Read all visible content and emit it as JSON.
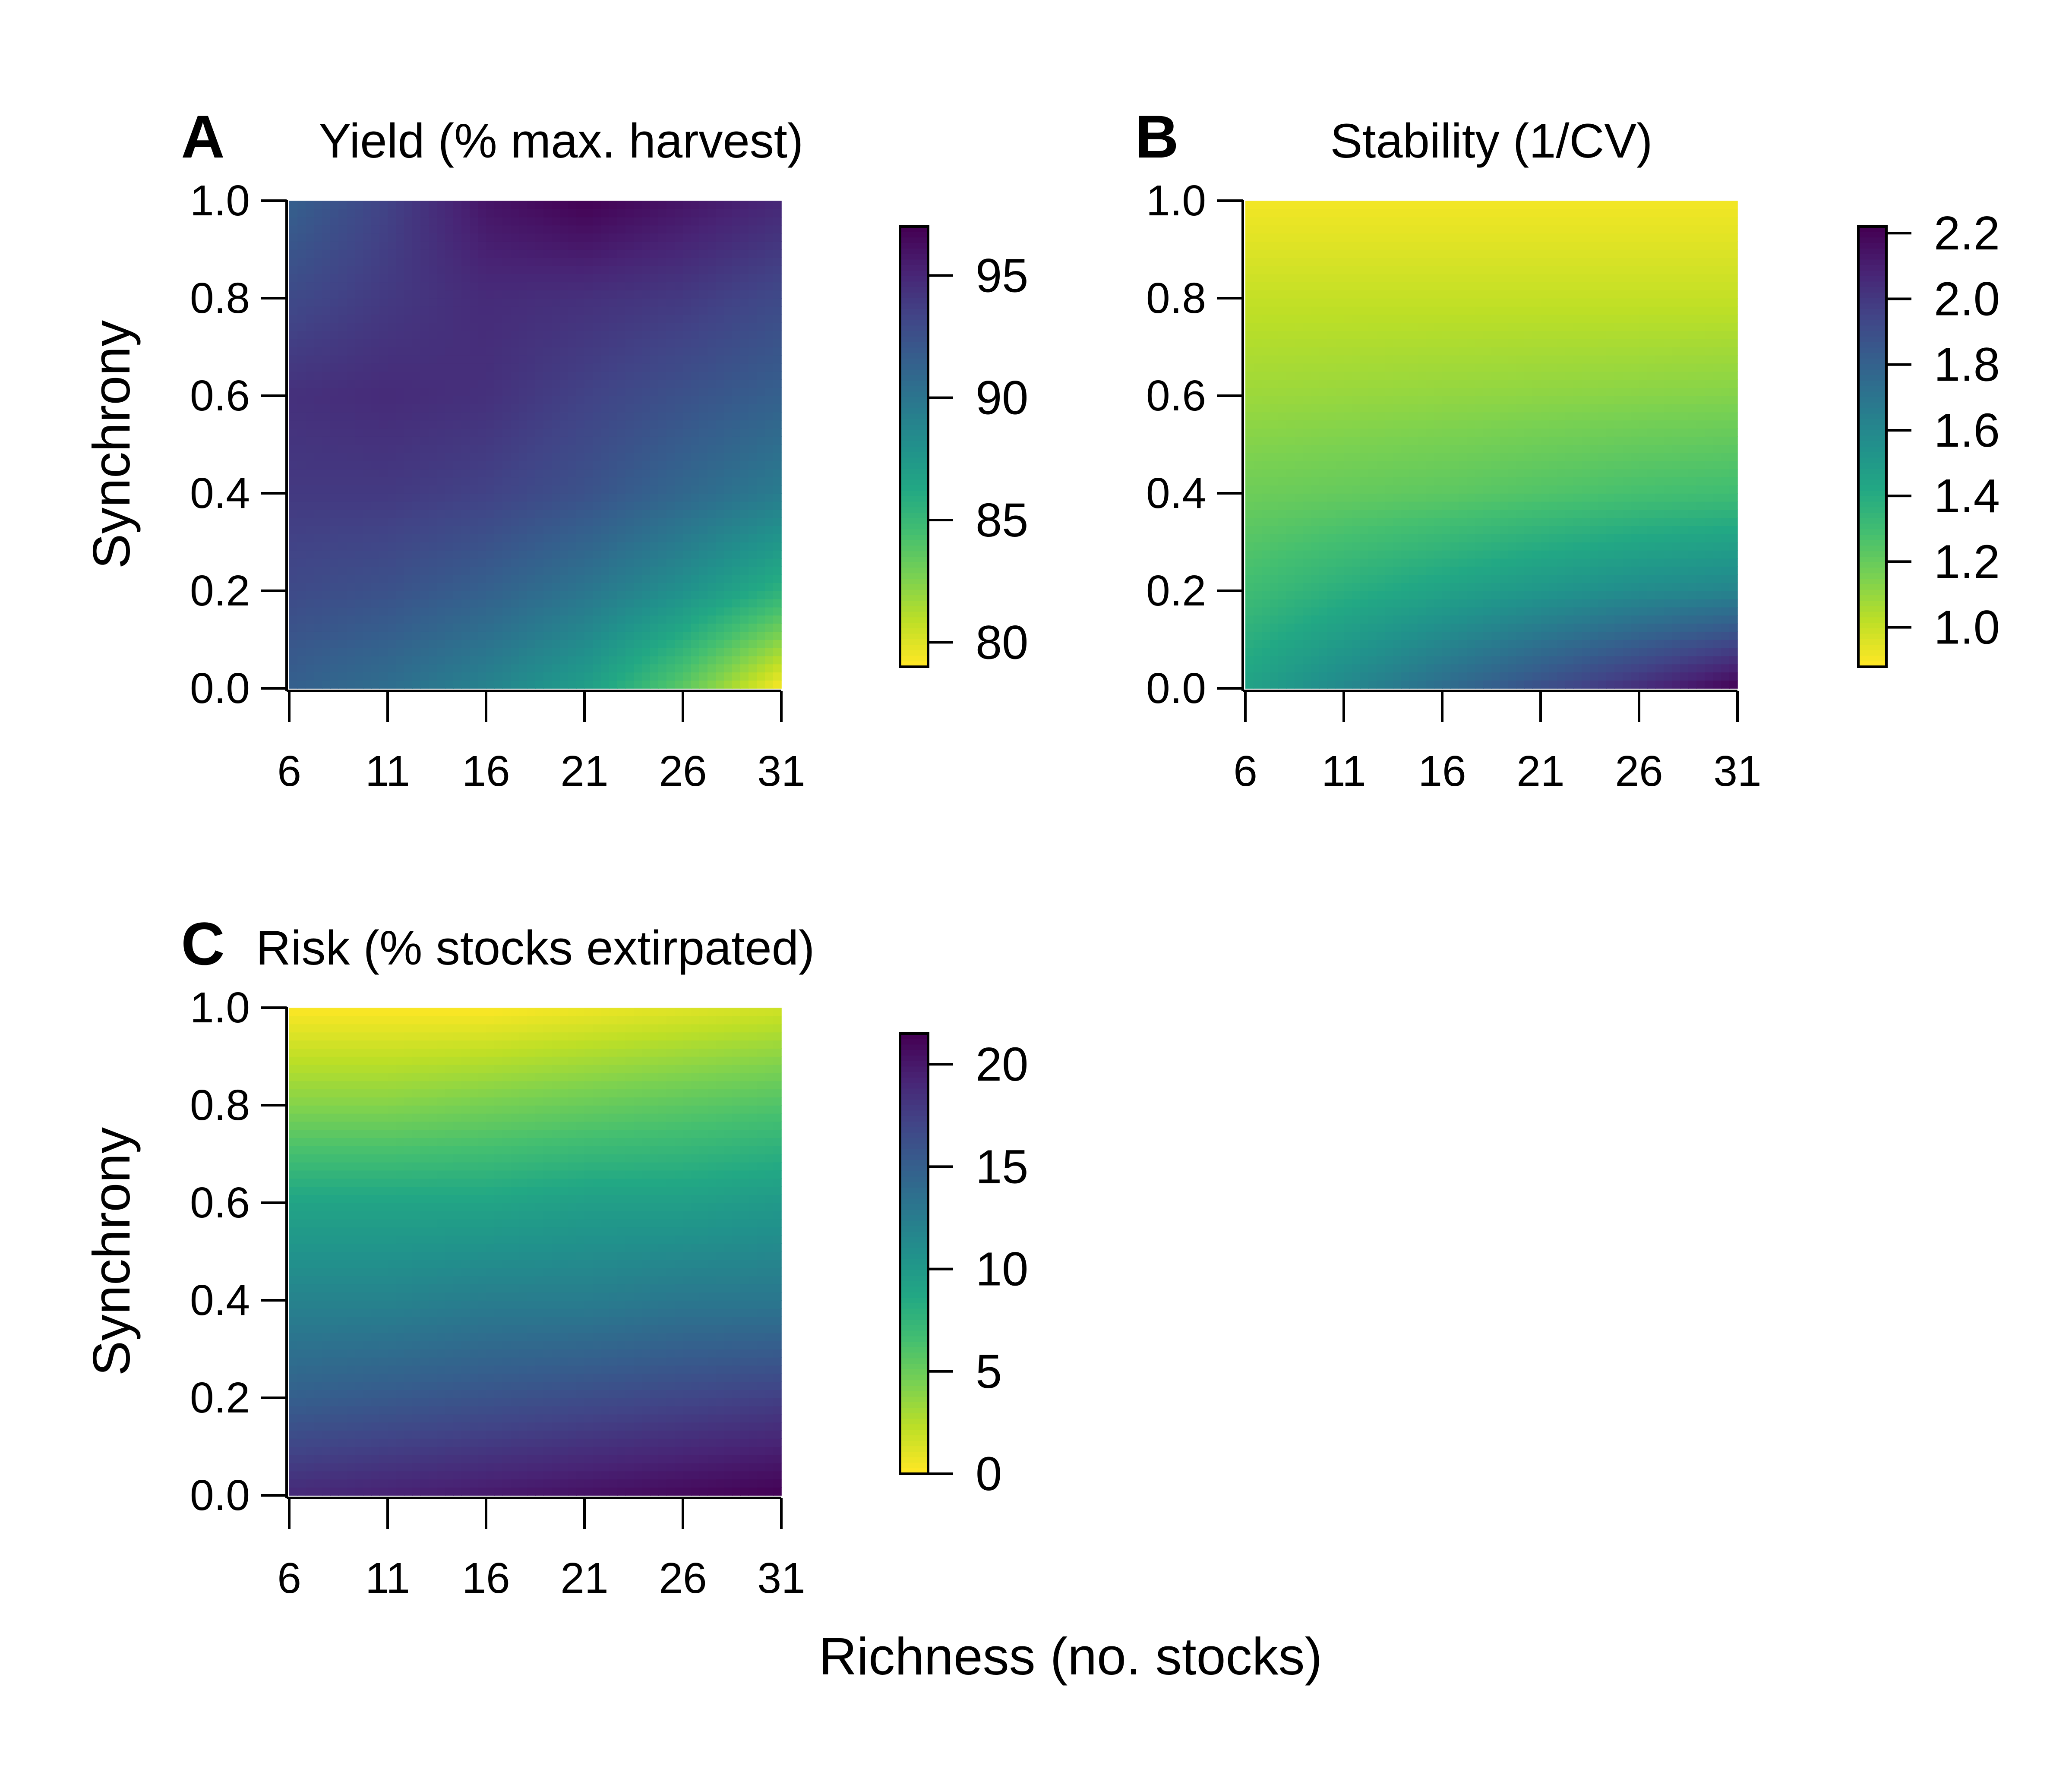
{
  "figure": {
    "ylabel": "Synchrony",
    "xlabel": "Richness (no. stocks)"
  },
  "colors": {
    "colormap": "viridis",
    "axis": "#000000",
    "background": "#ffffff"
  },
  "chart_data": [
    {
      "type": "heatmap",
      "letter": "A",
      "title": "Yield (% max. harvest)",
      "xlabel": "",
      "ylabel": "Synchrony",
      "xlim": [
        6,
        31
      ],
      "ylim": [
        0,
        1
      ],
      "x_ticks": [
        "6",
        "11",
        "16",
        "21",
        "26",
        "31"
      ],
      "y_ticks": [
        "0.0",
        "0.2",
        "0.4",
        "0.6",
        "0.8",
        "1.0"
      ],
      "colorbar": {
        "min": 79,
        "max": 97,
        "ticks": [
          "80",
          "85",
          "90",
          "95"
        ],
        "tick_values": [
          80,
          85,
          90,
          95
        ]
      },
      "x": [
        6,
        11,
        16,
        21,
        26,
        31
      ],
      "y": [
        0.0,
        0.2,
        0.4,
        0.6,
        0.8,
        1.0
      ],
      "z": [
        [
          91.5,
          90.5,
          89.0,
          87.0,
          83.5,
          79.0
        ],
        [
          93.0,
          92.5,
          91.5,
          90.0,
          88.0,
          85.5
        ],
        [
          94.0,
          94.0,
          93.5,
          92.5,
          91.0,
          89.5
        ],
        [
          94.5,
          94.8,
          94.5,
          93.5,
          92.5,
          91.5
        ],
        [
          93.0,
          94.0,
          94.8,
          94.5,
          94.0,
          93.0
        ],
        [
          91.5,
          93.5,
          96.0,
          97.0,
          96.0,
          95.0
        ]
      ]
    },
    {
      "type": "heatmap",
      "letter": "B",
      "title": "Stability (1/CV)",
      "xlabel": "",
      "ylabel": "",
      "xlim": [
        6,
        31
      ],
      "ylim": [
        0,
        1
      ],
      "x_ticks": [
        "6",
        "11",
        "16",
        "21",
        "26",
        "31"
      ],
      "y_ticks": [
        "0.0",
        "0.2",
        "0.4",
        "0.6",
        "0.8",
        "1.0"
      ],
      "colorbar": {
        "min": 0.88,
        "max": 2.22,
        "ticks": [
          "1.0",
          "1.2",
          "1.4",
          "1.6",
          "1.8",
          "2.0",
          "2.2"
        ],
        "tick_values": [
          1.0,
          1.2,
          1.4,
          1.6,
          1.8,
          2.0,
          2.2
        ]
      },
      "x": [
        6,
        11,
        16,
        21,
        26,
        31
      ],
      "y": [
        0.0,
        0.2,
        0.4,
        0.6,
        0.8,
        1.0
      ],
      "z": [
        [
          1.45,
          1.6,
          1.75,
          1.9,
          2.05,
          2.22
        ],
        [
          1.3,
          1.38,
          1.45,
          1.52,
          1.58,
          1.62
        ],
        [
          1.18,
          1.2,
          1.22,
          1.25,
          1.28,
          1.3
        ],
        [
          1.08,
          1.09,
          1.1,
          1.11,
          1.12,
          1.13
        ],
        [
          1.0,
          1.0,
          1.0,
          1.0,
          1.0,
          1.0
        ],
        [
          0.9,
          0.9,
          0.9,
          0.9,
          0.9,
          0.9
        ]
      ]
    },
    {
      "type": "heatmap",
      "letter": "C",
      "title": "Risk (% stocks extirpated)",
      "xlabel": "Richness (no. stocks)",
      "ylabel": "Synchrony",
      "xlim": [
        6,
        31
      ],
      "ylim": [
        0,
        1
      ],
      "x_ticks": [
        "6",
        "11",
        "16",
        "21",
        "26",
        "31"
      ],
      "y_ticks": [
        "0.0",
        "0.2",
        "0.4",
        "0.6",
        "0.8",
        "1.0"
      ],
      "colorbar": {
        "min": 0,
        "max": 21.5,
        "ticks": [
          "0",
          "5",
          "10",
          "15",
          "20"
        ],
        "tick_values": [
          0,
          5,
          10,
          15,
          20
        ]
      },
      "x": [
        6,
        11,
        16,
        21,
        26,
        31
      ],
      "y": [
        0.0,
        0.2,
        0.4,
        0.6,
        0.8,
        1.0
      ],
      "z": [
        [
          19.0,
          19.5,
          20.0,
          20.5,
          21.0,
          21.5
        ],
        [
          15.0,
          15.5,
          16.0,
          16.5,
          17.0,
          17.5
        ],
        [
          12.0,
          12.0,
          12.5,
          12.5,
          13.0,
          13.0
        ],
        [
          9.0,
          9.0,
          9.0,
          9.5,
          9.5,
          10.0
        ],
        [
          4.0,
          4.0,
          4.5,
          5.0,
          5.5,
          6.0
        ],
        [
          0.0,
          0.0,
          0.0,
          0.5,
          1.0,
          1.5
        ]
      ]
    }
  ]
}
